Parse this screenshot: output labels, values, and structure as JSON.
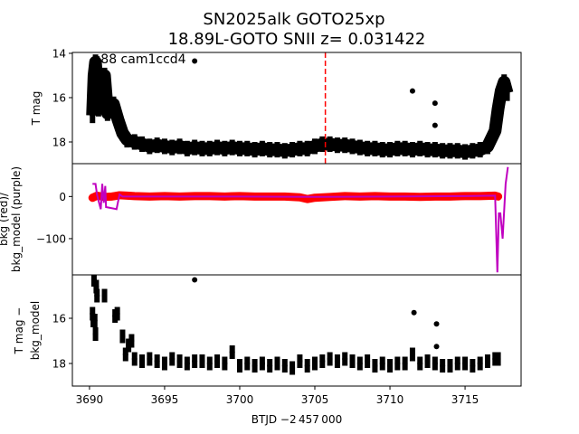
{
  "chart_data": {
    "type": "scatter",
    "title": "SN2025alk  GOTO25xp",
    "subtitle": "18.89L-GOTO SNII z= 0.031422",
    "xlabel": "BTJD −2 457 000",
    "xlim": [
      3688.86,
      3718.73
    ],
    "xticks": [
      "3690",
      "3695",
      "3700",
      "3705",
      "3710",
      "3715"
    ],
    "xtick_values": [
      3690,
      3695,
      3700,
      3705,
      3710,
      3715
    ],
    "marker_line": {
      "x": 3705.7,
      "color": "#ff0000",
      "style": "dashed"
    },
    "panels": [
      {
        "name": "lightcurve",
        "ylabel": "T mag",
        "annotation": "s88 cam1ccd4",
        "ylim": [
          18.98,
          13.96
        ],
        "yticks": [
          "14",
          "16",
          "18"
        ],
        "ytick_values": [
          14,
          16,
          18
        ],
        "series": [
          {
            "name": "T mag",
            "color": "#000000",
            "yerr": 0.35,
            "x": [
              3690.2,
              3690.3,
              3690.4,
              3690.6,
              3690.8,
              3691.0,
              3691.2,
              3691.6,
              3691.9,
              3692.2,
              3692.5,
              3693.0,
              3693.5,
              3694,
              3694.5,
              3695,
              3695.5,
              3696,
              3696.5,
              3697,
              3697.5,
              3698,
              3698.5,
              3699,
              3699.5,
              3700,
              3700.5,
              3701,
              3701.5,
              3702,
              3702.5,
              3703,
              3703.5,
              3704,
              3704.5,
              3705,
              3705.5,
              3706,
              3706.5,
              3707,
              3707.5,
              3708,
              3708.5,
              3709,
              3709.5,
              3710,
              3710.5,
              3711,
              3711.5,
              3712,
              3712.5,
              3713,
              3713.5,
              3714,
              3714.5,
              3715,
              3715.5,
              3716,
              3716.5,
              3717.0,
              3717.2,
              3717.4,
              3717.6,
              3717.8
            ],
            "y": [
              16.8,
              15.0,
              14.4,
              16.5,
              15.5,
              15.0,
              16.7,
              16.3,
              17.0,
              17.6,
              17.9,
              18.0,
              18.1,
              18.2,
              18.15,
              18.2,
              18.25,
              18.2,
              18.3,
              18.25,
              18.3,
              18.3,
              18.25,
              18.3,
              18.25,
              18.3,
              18.3,
              18.35,
              18.3,
              18.35,
              18.35,
              18.4,
              18.35,
              18.3,
              18.3,
              18.2,
              18.1,
              18.1,
              18.15,
              18.15,
              18.2,
              18.25,
              18.3,
              18.3,
              18.35,
              18.35,
              18.3,
              18.3,
              18.35,
              18.3,
              18.35,
              18.35,
              18.4,
              18.4,
              18.4,
              18.45,
              18.4,
              18.35,
              18.2,
              17.5,
              16.5,
              15.7,
              15.3,
              15.8
            ]
          },
          {
            "name": "outliers",
            "color": "#000000",
            "x": [
              3697.0,
              3711.5,
              3713.0,
              3713.0
            ],
            "y": [
              14.35,
              15.7,
              16.25,
              17.25
            ]
          }
        ]
      },
      {
        "name": "background",
        "ylabel": "bkg (red)/\nbkg_model (purple)",
        "ylim": [
          -186,
          78
        ],
        "yticks": [
          "0",
          "−100"
        ],
        "ytick_values": [
          0,
          -100
        ],
        "series": [
          {
            "name": "bkg",
            "color": "#ff0000",
            "x": [
              3690.2,
              3690.5,
              3691,
              3691.5,
              3692,
              3692.5,
              3693,
              3694,
              3695,
              3696,
              3697,
              3698,
              3699,
              3700,
              3701,
              3702,
              3703,
              3704,
              3704.5,
              3705,
              3706,
              3707,
              3708,
              3709,
              3710,
              3711,
              3712,
              3713,
              3714,
              3715,
              3716,
              3717,
              3717.2
            ],
            "y": [
              -3,
              2,
              -1,
              0,
              3,
              2,
              1,
              0,
              1,
              0,
              1,
              1,
              0,
              1,
              0,
              0,
              0,
              -2,
              -6,
              -3,
              -1,
              1,
              0,
              1,
              0,
              0,
              -1,
              0,
              0,
              1,
              1,
              2,
              0
            ]
          },
          {
            "name": "bkg_model",
            "color": "#c000c0",
            "x": [
              3690.2,
              3690.4,
              3690.5,
              3690.6,
              3690.75,
              3690.85,
              3690.95,
              3691.05,
              3691.1,
              3691.8,
              3692.0,
              3692.2,
              3695,
              3700,
              3705,
              3710,
              3715,
              3717.0,
              3717.15,
              3717.25,
              3717.35,
              3717.5,
              3717.7,
              3717.85
            ],
            "y": [
              30,
              30,
              5,
              -10,
              -30,
              30,
              -15,
              25,
              -25,
              -30,
              5,
              0,
              0,
              0,
              -1,
              0,
              1,
              2,
              -180,
              -40,
              -40,
              -100,
              30,
              70
            ]
          }
        ]
      },
      {
        "name": "corrected",
        "ylabel": "T mag −\nbkg_model",
        "ylim": [
          19.0,
          14.08
        ],
        "yticks": [
          "16",
          "18"
        ],
        "ytick_values": [
          16,
          18
        ],
        "series": [
          {
            "name": "T mag - bkg_model",
            "color": "#000000",
            "yerr": 0.3,
            "x": [
              3690.2,
              3690.25,
              3690.3,
              3690.35,
              3690.4,
              3690.45,
              3690.5,
              3691.0,
              3691.7,
              3691.85,
              3692.2,
              3692.4,
              3692.6,
              3692.8,
              3693.0,
              3693.5,
              3694,
              3694.5,
              3695,
              3695.5,
              3696,
              3696.5,
              3697,
              3697.5,
              3698,
              3698.5,
              3699,
              3699.5,
              3700,
              3700.5,
              3701,
              3701.5,
              3702,
              3702.5,
              3703,
              3703.5,
              3704,
              3704.5,
              3705,
              3705.5,
              3706,
              3706.5,
              3707,
              3707.5,
              3708,
              3708.5,
              3709,
              3709.5,
              3710,
              3710.5,
              3711,
              3711.5,
              3712,
              3712.5,
              3713,
              3713.5,
              3714,
              3714.5,
              3715,
              3715.5,
              3716,
              3716.5,
              3717.0,
              3717.2
            ],
            "y": [
              15.8,
              16.1,
              14.3,
              16.1,
              16.7,
              14.6,
              15.0,
              15.0,
              15.9,
              15.8,
              16.8,
              17.6,
              17.2,
              17.0,
              17.8,
              17.9,
              17.8,
              17.9,
              18.0,
              17.8,
              17.9,
              18.0,
              17.9,
              17.9,
              18.0,
              17.9,
              18.0,
              17.5,
              18.1,
              18.0,
              18.1,
              18.0,
              18.1,
              18.0,
              18.1,
              18.2,
              17.9,
              18.1,
              18.0,
              17.9,
              17.8,
              17.9,
              17.8,
              17.9,
              18.0,
              17.9,
              18.1,
              18.0,
              18.1,
              18.0,
              18.0,
              17.6,
              18.0,
              17.9,
              18.0,
              18.1,
              18.1,
              18.0,
              18.0,
              18.1,
              18.0,
              17.9,
              17.8,
              17.8
            ]
          },
          {
            "name": "outliers",
            "color": "#000000",
            "x": [
              3697.0,
              3711.6,
              3713.1,
              3713.1
            ],
            "y": [
              14.3,
              15.75,
              16.25,
              17.25
            ]
          }
        ]
      }
    ]
  }
}
